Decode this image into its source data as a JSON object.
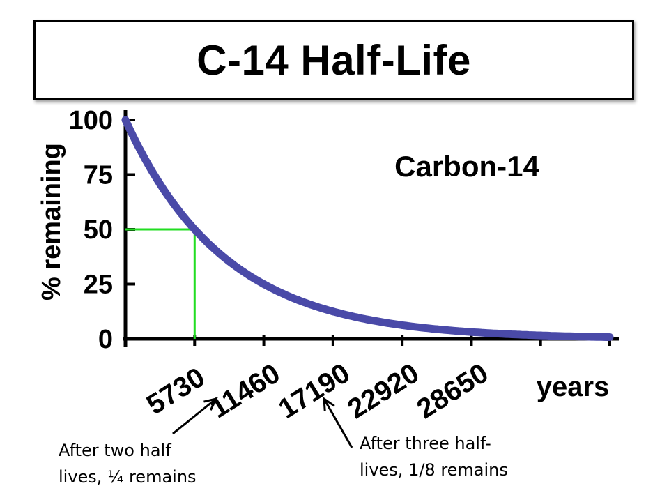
{
  "title": "C-14 Half-Life",
  "colors": {
    "curve": "#4a4aa8",
    "guide": "#22dd22",
    "axis": "#000000"
  },
  "chart_data": {
    "type": "line",
    "label": "Carbon-14",
    "ylabel": "% remaining",
    "xlabel": "years",
    "half_life": 5730,
    "xlim": [
      0,
      40110
    ],
    "ylim": [
      0,
      100
    ],
    "yticks": [
      0,
      25,
      50,
      75,
      100
    ],
    "xticks": [
      5730,
      11460,
      17190,
      22920,
      28650
    ],
    "xtick_labels": [
      "5730",
      "11460",
      "17190",
      "22920",
      "28650"
    ],
    "series": [
      {
        "x": [
          0,
          2865,
          5730,
          8595,
          11460,
          14325,
          17190,
          20055,
          22920,
          25785,
          28650,
          31515,
          34380,
          37245,
          40110
        ],
        "y": [
          100,
          70.7,
          50,
          35.4,
          25,
          17.7,
          12.5,
          8.8,
          6.25,
          4.4,
          3.1,
          2.2,
          1.6,
          1.1,
          0.8
        ]
      }
    ],
    "guide": {
      "x": 5730,
      "y": 50
    },
    "grid": false
  },
  "annotations": {
    "left": "After two half\nlives, ¼ remains",
    "right": "After three half-\nlives, 1/8 remains"
  }
}
